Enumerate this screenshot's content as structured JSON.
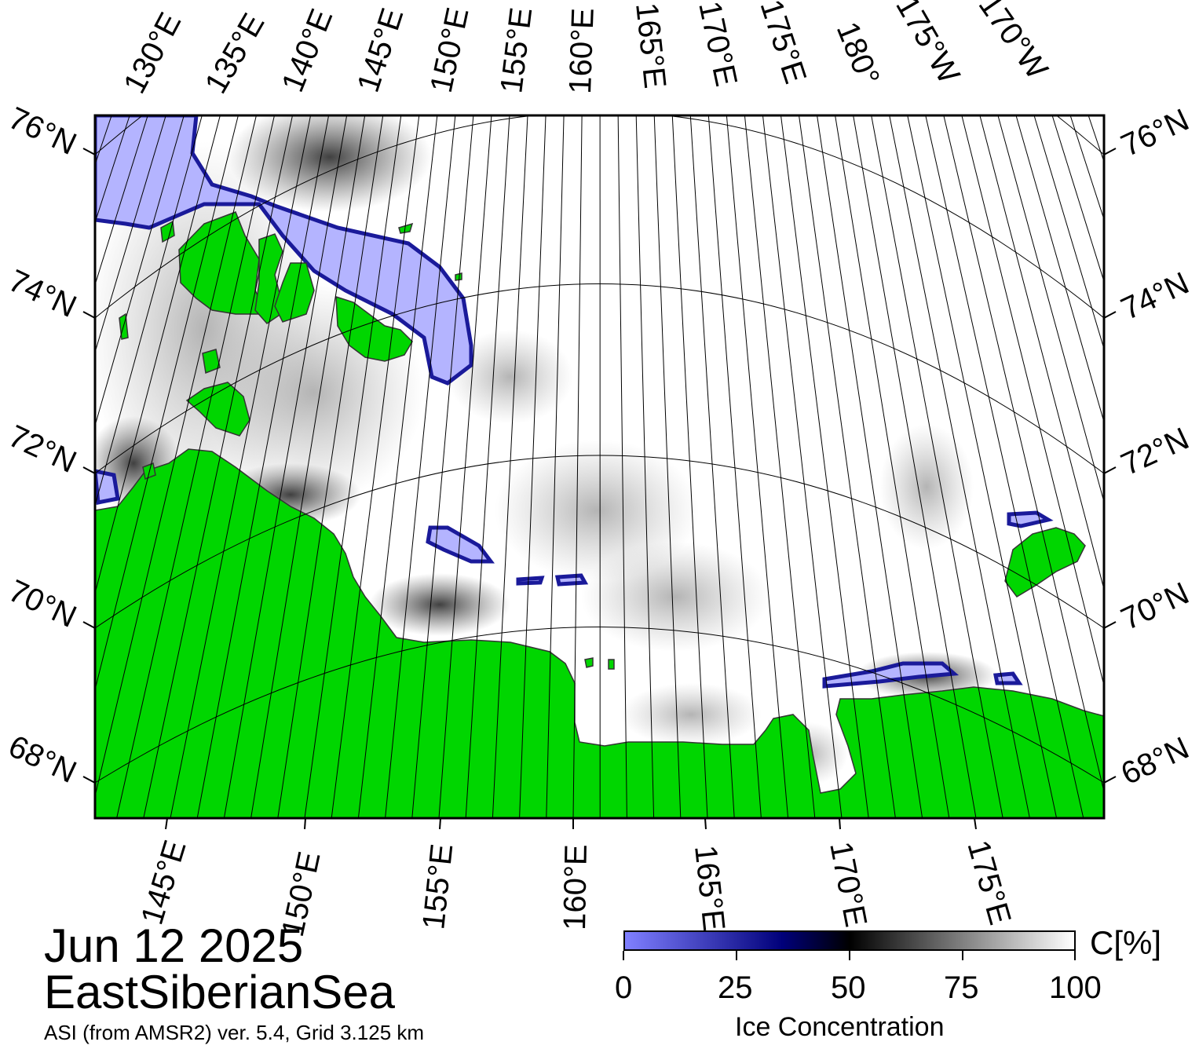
{
  "header": {
    "date": "Jun 12 2025",
    "region": "EastSiberianSea",
    "source": "ASI (from AMSR2) ver. 5.4,  Grid 3.125 km"
  },
  "top_lon_labels": [
    "130°E",
    "135°E",
    "140°E",
    "145°E",
    "150°E",
    "155°E",
    "160°E",
    "165°E",
    "170°E",
    "175°E",
    "180°",
    "175°W",
    "170°W"
  ],
  "bottom_lon_labels": [
    "145°E",
    "150°E",
    "155°E",
    "160°E",
    "165°E",
    "170°E",
    "175°E"
  ],
  "left_lat_labels": [
    "76°N",
    "74°N",
    "72°N",
    "70°N",
    "68°N"
  ],
  "right_lat_labels": [
    "76°N",
    "74°N",
    "72°N",
    "70°N",
    "68°N"
  ],
  "colorbar": {
    "title": "Ice Concentration",
    "unit": "C[%]",
    "ticks": [
      "0",
      "25",
      "50",
      "75",
      "100"
    ],
    "stops": [
      "#8080ff",
      "#00007a",
      "#000000",
      "#ffffff"
    ]
  },
  "colors": {
    "land": "#00d600",
    "water": "#ffffff",
    "low_ice": "#b4b4ff",
    "grid": "#000000"
  }
}
